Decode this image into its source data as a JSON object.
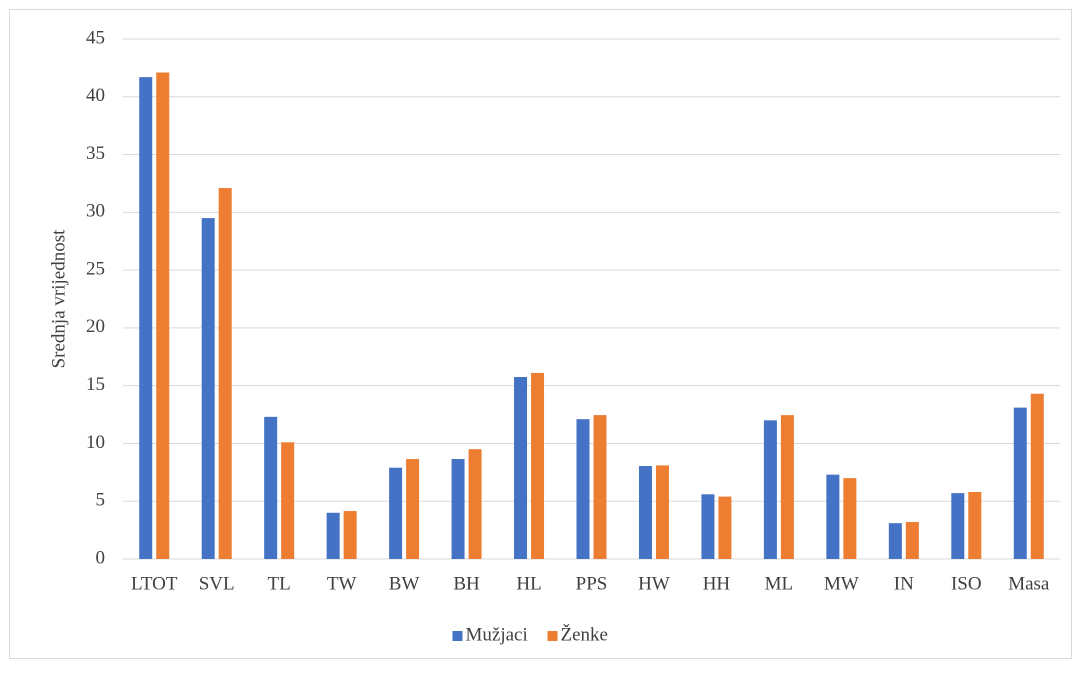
{
  "chart_data": {
    "type": "bar",
    "y_label": "Srednja vrijednost",
    "categories": [
      "LTOT",
      "SVL",
      "TL",
      "TW",
      "BW",
      "BH",
      "HL",
      "PPS",
      "HW",
      "HH",
      "ML",
      "MW",
      "IN",
      "ISO",
      "Masa"
    ],
    "series": [
      {
        "name": "Mužjaci",
        "color": "#4472c4",
        "values": [
          41.7,
          29.5,
          12.3,
          4.0,
          7.9,
          8.65,
          15.75,
          12.1,
          8.05,
          5.6,
          12.0,
          7.3,
          3.1,
          5.7,
          13.1
        ]
      },
      {
        "name": "Ženke",
        "color": "#ed7d31",
        "values": [
          42.1,
          32.1,
          10.1,
          4.15,
          8.65,
          9.5,
          16.1,
          12.45,
          8.1,
          5.4,
          12.45,
          7.0,
          3.2,
          5.8,
          14.3
        ]
      }
    ],
    "ylim": [
      0,
      45
    ],
    "yticks": [
      0,
      5,
      10,
      15,
      20,
      25,
      30,
      35,
      40,
      45
    ],
    "grid": true,
    "legend": "bottom"
  }
}
